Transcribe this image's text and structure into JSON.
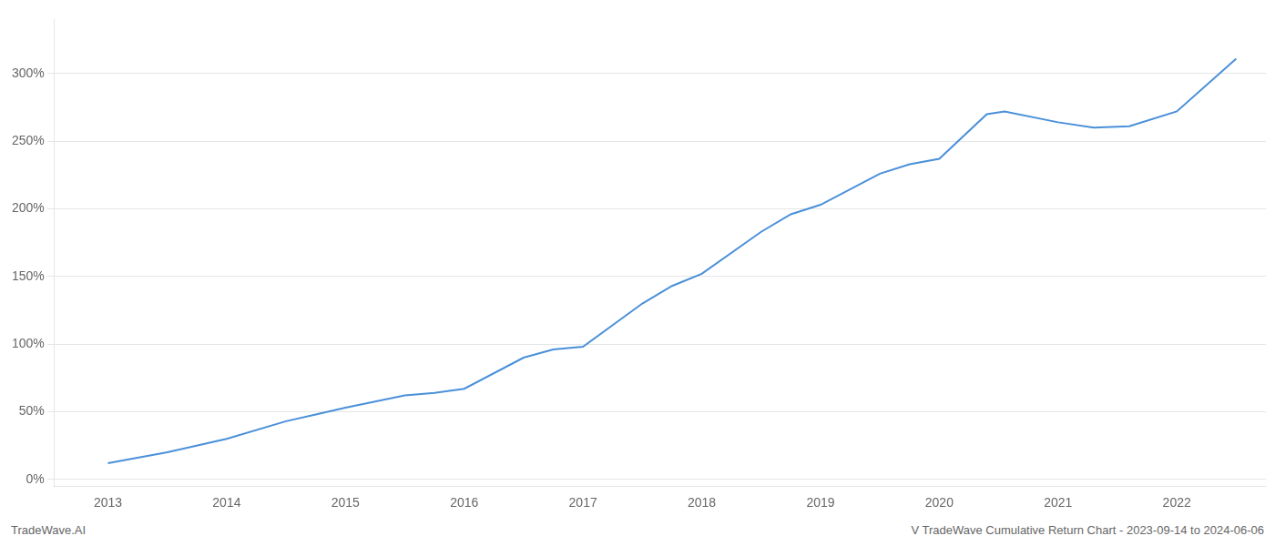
{
  "chart_data": {
    "type": "line",
    "annotations": [
      "TradeWave.AI",
      "V TradeWave Cumulative Return Chart - 2023-09-14 to 2024-06-06"
    ],
    "x": [
      2013.0,
      2013.5,
      2014.0,
      2014.5,
      2014.75,
      2015.0,
      2015.5,
      2015.75,
      2016.0,
      2016.5,
      2016.75,
      2017.0,
      2017.5,
      2017.75,
      2018.0,
      2018.5,
      2018.75,
      2019.0,
      2019.5,
      2019.75,
      2020.0,
      2020.4,
      2020.55,
      2021.0,
      2021.3,
      2021.6,
      2022.0,
      2022.5
    ],
    "values": [
      12,
      20,
      30,
      43,
      48,
      53,
      62,
      64,
      67,
      90,
      96,
      98,
      130,
      143,
      152,
      183,
      196,
      203,
      226,
      233,
      237,
      270,
      272,
      264,
      260,
      261,
      272,
      311
    ],
    "color": "#4a90d9",
    "marker": "none",
    "xlim": [
      2012.55,
      2022.75
    ],
    "xticks": [
      2013,
      2014,
      2015,
      2016,
      2017,
      2018,
      2019,
      2020,
      2021,
      2022
    ],
    "ylim": [
      -5,
      340
    ],
    "yticks": [
      {
        "value": 0,
        "label": "0%"
      },
      {
        "value": 50,
        "label": "50%"
      },
      {
        "value": 100,
        "label": "100%"
      },
      {
        "value": 150,
        "label": "150%"
      },
      {
        "value": 200,
        "label": "200%"
      },
      {
        "value": 250,
        "label": "250%"
      },
      {
        "value": 300,
        "label": "300%"
      }
    ],
    "grid": true
  }
}
